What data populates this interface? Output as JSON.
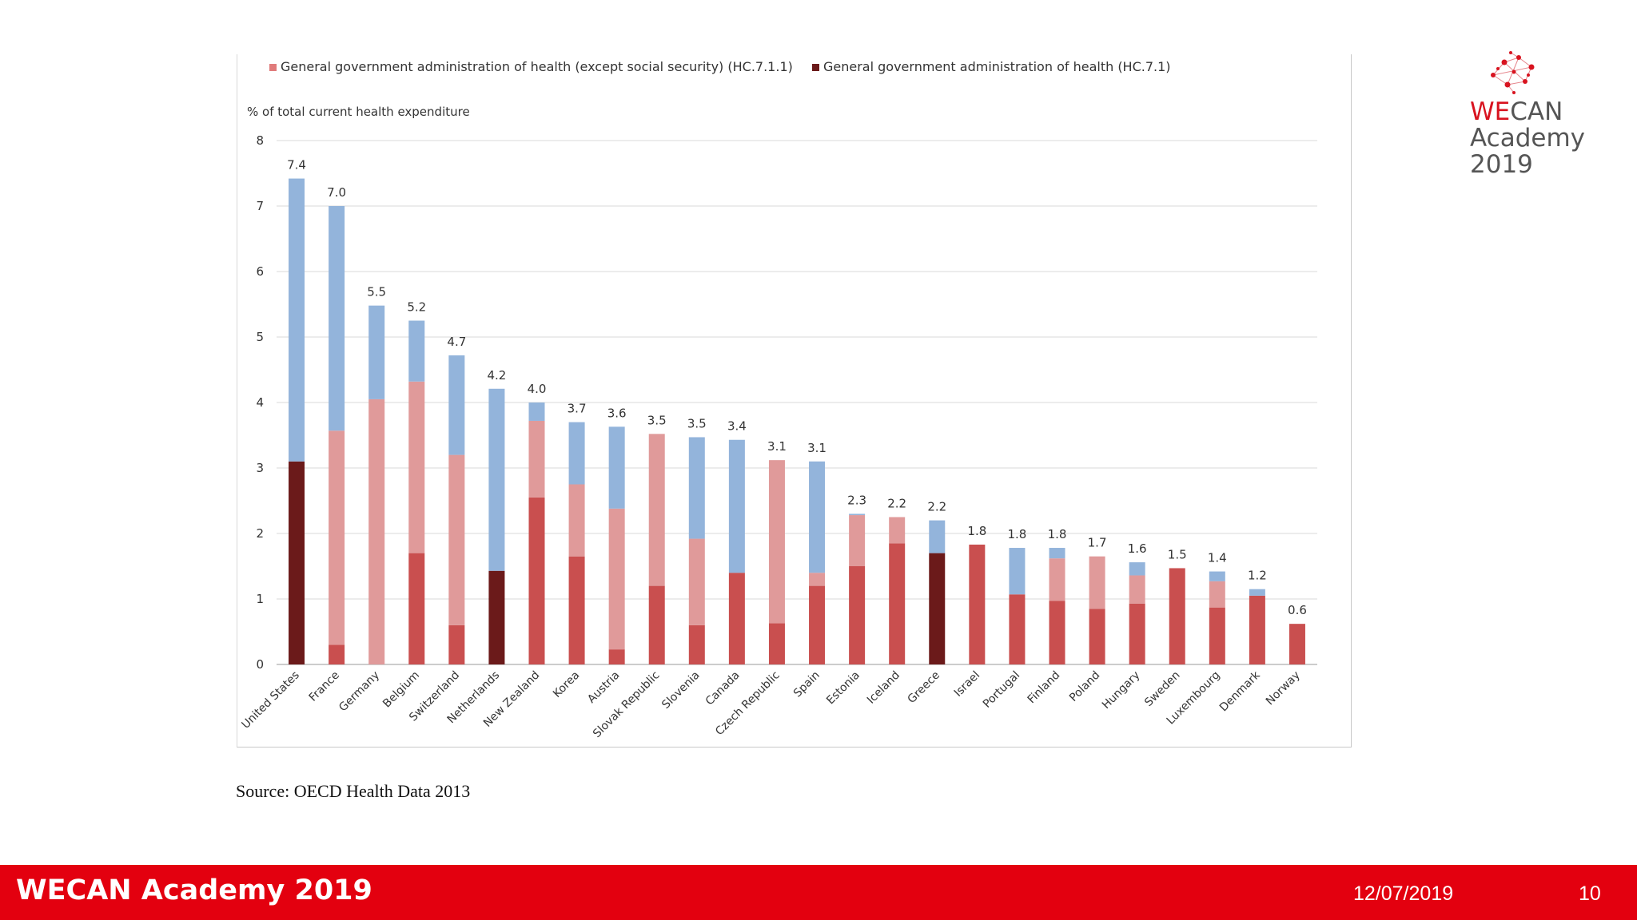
{
  "chart_data": {
    "type": "bar",
    "stacked": true,
    "ylabel": "% of total current  health expenditure",
    "ylim": [
      0,
      8
    ],
    "yticks": [
      0,
      1,
      2,
      3,
      4,
      5,
      6,
      7,
      8
    ],
    "grid": true,
    "legend_position": "top",
    "legend": [
      {
        "name": "General government administration of health (except social security) (HC.7.1.1)",
        "color": "#e07b7b"
      },
      {
        "name": "General government administration of health (HC.7.1)",
        "color": "#6b1a1a"
      }
    ],
    "colors": {
      "dark_red": "#6b1a1a",
      "red": "#c94f4f",
      "pink": "#e09a9a",
      "blue": "#93b4db"
    },
    "categories": [
      "United States",
      "France",
      "Germany",
      "Belgium",
      "Switzerland",
      "Netherlands",
      "New Zealand",
      "Korea",
      "Austria",
      "Slovak Republic",
      "Slovenia",
      "Canada",
      "Czech Republic",
      "Spain",
      "Estonia",
      "Iceland",
      "Greece",
      "Israel",
      "Portugal",
      "Finland",
      "Poland",
      "Hungary",
      "Sweden",
      "Luxembourg",
      "Denmark",
      "Norway"
    ],
    "series": [
      {
        "key": "dark_red",
        "values": [
          3.1,
          0,
          0,
          0,
          0,
          1.43,
          0,
          0,
          0,
          0,
          0,
          0,
          0,
          0,
          0,
          0,
          1.7,
          0,
          0,
          0,
          0,
          0,
          0,
          0,
          0,
          0
        ]
      },
      {
        "key": "red",
        "values": [
          0,
          0.3,
          0,
          1.7,
          0.6,
          0,
          2.55,
          1.65,
          0.23,
          1.2,
          0.6,
          1.4,
          0.63,
          1.2,
          1.5,
          1.85,
          0,
          1.83,
          1.07,
          0.97,
          0.85,
          0.93,
          1.47,
          0.87,
          1.05,
          0.62
        ]
      },
      {
        "key": "pink",
        "values": [
          0,
          3.27,
          4.05,
          2.62,
          2.6,
          0,
          1.17,
          1.1,
          2.15,
          2.32,
          1.32,
          0,
          2.49,
          0.2,
          0.78,
          0.4,
          0,
          0,
          0,
          0.65,
          0.8,
          0.43,
          0,
          0.4,
          0,
          0
        ]
      },
      {
        "key": "blue",
        "values": [
          4.32,
          3.43,
          1.43,
          0.93,
          1.52,
          2.78,
          0.28,
          0.95,
          1.25,
          0,
          1.55,
          2.03,
          0,
          1.7,
          0.02,
          0,
          0.5,
          0,
          0.71,
          0.16,
          0,
          0.2,
          0,
          0.15,
          0.1,
          0
        ]
      }
    ],
    "total_labels": [
      "7.4",
      "7.0",
      "5.5",
      "5.2",
      "4.7",
      "4.2",
      "4.0",
      "3.7",
      "3.6",
      "3.5",
      "3.5",
      "3.4",
      "3.1",
      "3.1",
      "2.3",
      "2.2",
      "2.2",
      "1.8",
      "1.8",
      "1.8",
      "1.7",
      "1.6",
      "1.5",
      "1.4",
      "1.2",
      "0.6"
    ]
  },
  "source": "Source: OECD Health Data 2013",
  "logo": {
    "brand_red": "WE",
    "brand_rest": "CAN",
    "line2": "Academy",
    "line3": "2019"
  },
  "footer": {
    "title": "WECAN Academy 2019",
    "date": "12/07/2019",
    "page": "10",
    "color": "#e3000f"
  }
}
